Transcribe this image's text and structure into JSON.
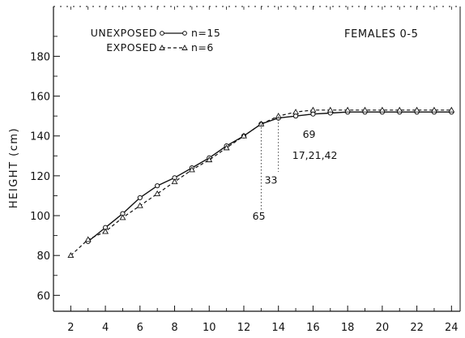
{
  "chart_data": {
    "type": "line",
    "panel_title": "FEMALES 0-5",
    "xlabel": "",
    "ylabel": "HEIGHT (cm)",
    "xlim": [
      1,
      24.5
    ],
    "ylim": [
      52,
      205
    ],
    "x_ticks": [
      2,
      4,
      6,
      8,
      10,
      12,
      14,
      16,
      18,
      20,
      22,
      24
    ],
    "y_ticks": [
      60,
      80,
      100,
      120,
      140,
      160,
      180
    ],
    "grid": false,
    "legend_position": "top-left",
    "series": [
      {
        "name": "UNEXPOSED",
        "legend_label": "UNEXPOSED",
        "n_label": "n=15",
        "line_style": "solid",
        "marker": "circle",
        "x": [
          3,
          4,
          5,
          6,
          7,
          8,
          9,
          10,
          11,
          12,
          13,
          14,
          15,
          16,
          17,
          18,
          19,
          20,
          21,
          22,
          23,
          24
        ],
        "y": [
          87,
          94,
          101,
          109,
          115,
          119,
          124,
          129,
          135,
          140,
          146,
          149,
          150,
          151,
          151.5,
          152,
          152,
          152,
          152,
          152,
          152,
          152
        ]
      },
      {
        "name": "EXPOSED",
        "legend_label": "EXPOSED",
        "n_label": "n=6",
        "line_style": "dashed",
        "marker": "triangle",
        "x": [
          2,
          3,
          4,
          5,
          6,
          7,
          8,
          9,
          10,
          11,
          12,
          13,
          14,
          15,
          16,
          17,
          18,
          19,
          20,
          21,
          22,
          23,
          24
        ],
        "y": [
          80,
          88,
          92,
          99,
          105,
          111,
          117,
          123,
          128,
          134,
          140,
          146,
          150,
          152,
          153,
          153,
          153,
          153,
          153,
          153,
          153,
          153,
          153
        ]
      }
    ],
    "annotations": [
      {
        "text": "69",
        "x": 15.4,
        "y": 139
      },
      {
        "text": "17,21,42",
        "x": 14.8,
        "y": 128.5
      },
      {
        "text": "33",
        "x": 13.2,
        "y": 116
      },
      {
        "text": "65",
        "x": 12.5,
        "y": 98
      }
    ],
    "marker_lines": [
      {
        "x": 13,
        "from_y": 146,
        "to_y": 103
      },
      {
        "x": 14,
        "from_y": 150,
        "to_y": 122
      }
    ]
  }
}
